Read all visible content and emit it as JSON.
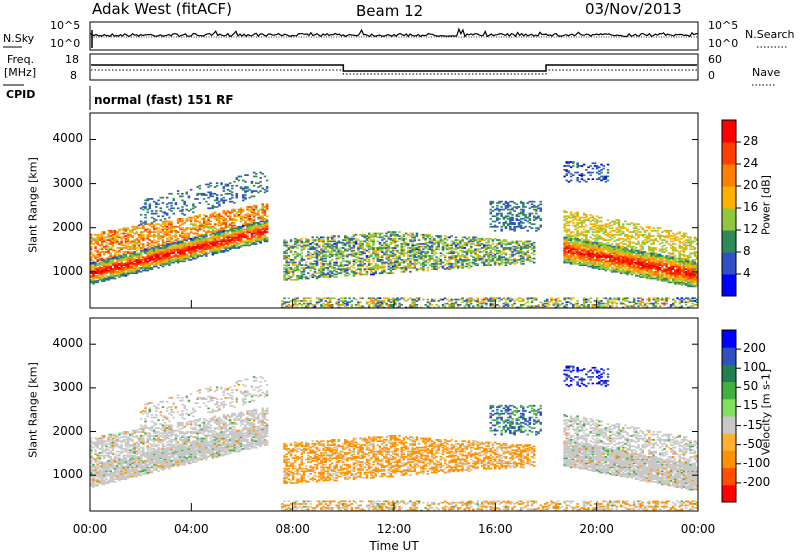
{
  "header": {
    "radar": "Adak West (fitACF)",
    "beam": "Beam 12",
    "date": "03/Nov/2013"
  },
  "strip_noise": {
    "left_label": "N.Sky",
    "left_ticks": [
      "10^5",
      "10^0"
    ],
    "right_ticks": [
      "10^5",
      "10^0"
    ],
    "right_label": "N.Search"
  },
  "strip_freq": {
    "left_label_1": "Freq.",
    "left_label_2": "[MHz]",
    "left_ticks": [
      "18",
      "8"
    ],
    "right_ticks": [
      "60",
      "0"
    ],
    "right_label": "Nave"
  },
  "cpid": {
    "label": "CPID",
    "text": "normal (fast) 151 RF"
  },
  "chart_data": [
    {
      "type": "heatmap",
      "title": "",
      "ylabel": "Slant Range [km]",
      "ylim": [
        180,
        4600
      ],
      "yticks": [
        "4000",
        "3000",
        "2000",
        "1000"
      ],
      "xlim": [
        0,
        24
      ],
      "colorbar_label": "Power [dB]",
      "colorbar_ticks": [
        "28",
        "24",
        "20",
        "16",
        "12",
        "8",
        "4"
      ],
      "colorbar_colors": [
        "#0000ff",
        "#3050c8",
        "#2e8b57",
        "#8fc83c",
        "#ffb000",
        "#ff8000",
        "#ff4000",
        "#ff0000"
      ],
      "colorbar_range": [
        0,
        32
      ]
    },
    {
      "type": "heatmap",
      "title": "",
      "ylabel": "Slant Range [km]",
      "ylim": [
        180,
        4600
      ],
      "yticks": [
        "4000",
        "3000",
        "2000",
        "1000"
      ],
      "xlim": [
        0,
        24
      ],
      "colorbar_label": "Velocity [m s-1]",
      "colorbar_ticks": [
        "200",
        "100",
        "50",
        "15",
        "-15",
        "-50",
        "-100",
        "-200"
      ],
      "colorbar_colors": [
        "#ff0000",
        "#ff5000",
        "#ff9000",
        "#ffb030",
        "#c8c8c8",
        "#80e060",
        "#40b040",
        "#208050",
        "#3050c0",
        "#0000ff"
      ]
    }
  ],
  "xaxis": {
    "ticks": [
      "00:00",
      "04:00",
      "08:00",
      "12:00",
      "16:00",
      "20:00",
      "00:00"
    ],
    "label": "Time UT"
  }
}
